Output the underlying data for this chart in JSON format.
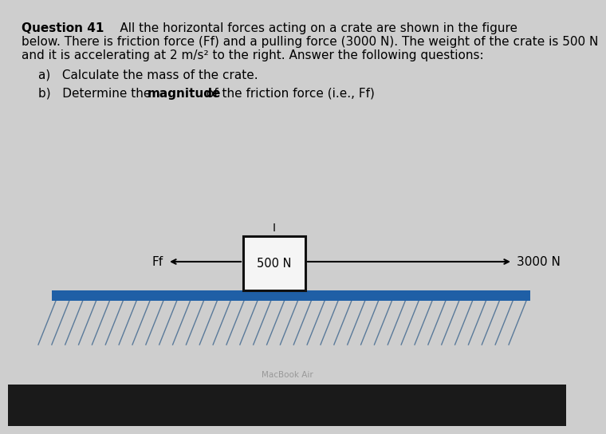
{
  "bg_color": "#cecece",
  "title_bold": "Question 41",
  "title_normal": "     All the horizontal forces acting on a crate are shown in the figure",
  "line2": "below. There is friction force (Ff) and a pulling force (3000 N). The weight of the crate is 500 N",
  "line3": "and it is accelerating at 2 m/s² to the right. Answer the following questions:",
  "qa_prefix": "a)   Calculate the mass of the crate.",
  "qb_pre": "b)   Determine the ",
  "qb_bold": "magnitude",
  "qb_post": " of the friction force (i.e., Ff)",
  "crate_label": "500 N",
  "fr_label": "Ff",
  "right_label": "3000 N",
  "floor_color": "#1f5fa6",
  "hatch_color": "#5a7a9a",
  "crate_edge": "#111111",
  "crate_fill": "#f5f5f5",
  "macbook_label": "MacBook Air",
  "bezel_color": "#1a1a1a",
  "fs": 11.0,
  "fs_diagram": 11.0
}
